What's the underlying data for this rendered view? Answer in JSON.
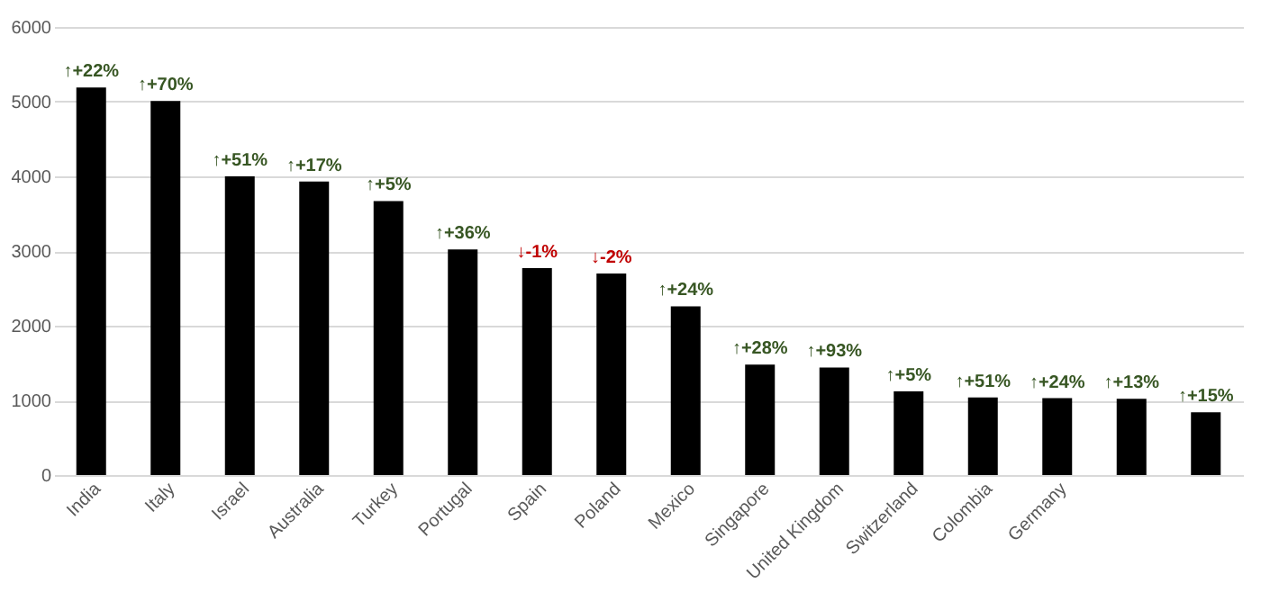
{
  "chart_data": {
    "type": "bar",
    "categories": [
      "India",
      "Italy",
      "Israel",
      "Australia",
      "Turkey",
      "Portugal",
      "Spain",
      "Poland",
      "Mexico",
      "Singapore",
      "United Kingdom",
      "Switzerland",
      "Colombia",
      "Germany",
      null,
      null
    ],
    "values": [
      5190,
      5010,
      4000,
      3930,
      3670,
      3020,
      2770,
      2700,
      2260,
      1480,
      1440,
      1120,
      1040,
      1030,
      1020,
      840
    ],
    "color": "#000000",
    "ylim": [
      0,
      6000
    ],
    "yticks": [
      0,
      1000,
      2000,
      3000,
      4000,
      5000,
      6000
    ],
    "grid": "y",
    "annotations": [
      {
        "text": "↑+22%",
        "x": "India",
        "y": 5190
      },
      {
        "text": "↑+70%",
        "x": "Italy",
        "y": 5010
      },
      {
        "text": "↑+51%",
        "x": "Israel",
        "y": 4000
      },
      {
        "text": "↑+17%",
        "x": "Australia",
        "y": 3930
      },
      {
        "text": "↑+5%",
        "x": "Turkey",
        "y": 3670
      },
      {
        "text": "↑+36%",
        "x": "Portugal",
        "y": 3020
      },
      {
        "text": "↓-1%",
        "x": "Spain",
        "y": 2770
      },
      {
        "text": "↓-2%",
        "x": "Poland",
        "y": 2700
      },
      {
        "text": "↑+24%",
        "x": "Mexico",
        "y": 2260
      },
      {
        "text": "↑+28%",
        "x": "Singapore",
        "y": 1480
      },
      {
        "text": "↑+93%",
        "x": "United Kingdom",
        "y": 1440
      },
      {
        "text": "↑+5%",
        "x": "Switzerland",
        "y": 1120
      },
      {
        "text": "↑+51%",
        "x": "Colombia",
        "y": 1040
      },
      {
        "text": "↑+24%",
        "x": "Germany",
        "y": 1030
      },
      {
        "text": "↑+13%",
        "y": 1020
      },
      {
        "text": "↑+15%",
        "y": 840
      }
    ]
  }
}
